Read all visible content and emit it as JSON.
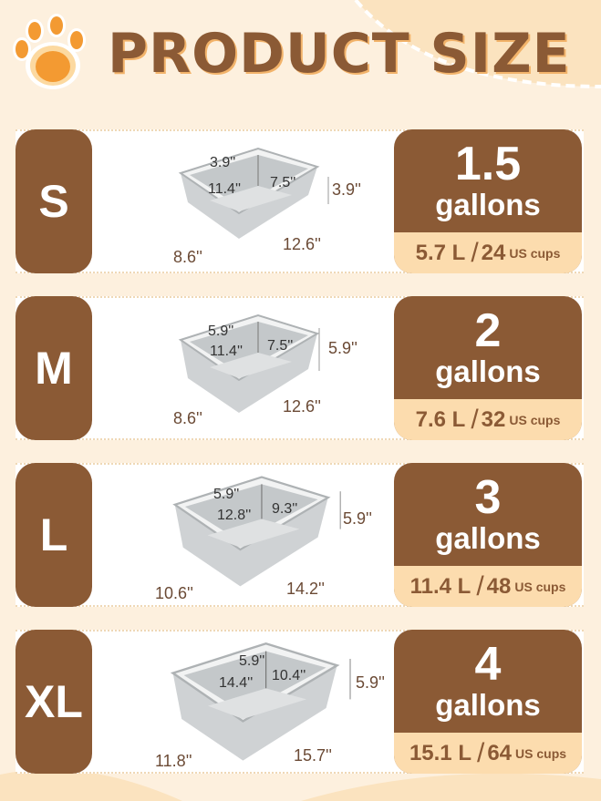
{
  "title": "PRODUCT SIZE",
  "colors": {
    "brown": "#8b5a35",
    "cream": "#fcdcae",
    "background": "#fdf0de",
    "paw": "#f39a32"
  },
  "sizes": [
    {
      "label": "S",
      "volume": "1.5",
      "unit": "gallons",
      "liters": "5.7 L",
      "cups": "24",
      "cups_label": "US cups",
      "dims": {
        "depth_inner": "3.9''",
        "length_inner": "11.4''",
        "width_inner": "7.5''",
        "height": "3.9''",
        "width": "8.6''",
        "length": "12.6''"
      }
    },
    {
      "label": "M",
      "volume": "2",
      "unit": "gallons",
      "liters": "7.6 L",
      "cups": "32",
      "cups_label": "US cups",
      "dims": {
        "depth_inner": "5.9''",
        "length_inner": "11.4''",
        "width_inner": "7.5''",
        "height": "5.9''",
        "width": "8.6''",
        "length": "12.6''"
      }
    },
    {
      "label": "L",
      "volume": "3",
      "unit": "gallons",
      "liters": "11.4 L",
      "cups": "48",
      "cups_label": "US cups",
      "dims": {
        "depth_inner": "5.9''",
        "length_inner": "12.8''",
        "width_inner": "9.3''",
        "height": "5.9''",
        "width": "10.6''",
        "length": "14.2''"
      }
    },
    {
      "label": "XL",
      "volume": "4",
      "unit": "gallons",
      "liters": "15.1 L",
      "cups": "64",
      "cups_label": "US cups",
      "dims": {
        "depth_inner": "5.9''",
        "length_inner": "14.4''",
        "width_inner": "10.4''",
        "height": "5.9''",
        "width": "11.8''",
        "length": "15.7''"
      }
    }
  ]
}
